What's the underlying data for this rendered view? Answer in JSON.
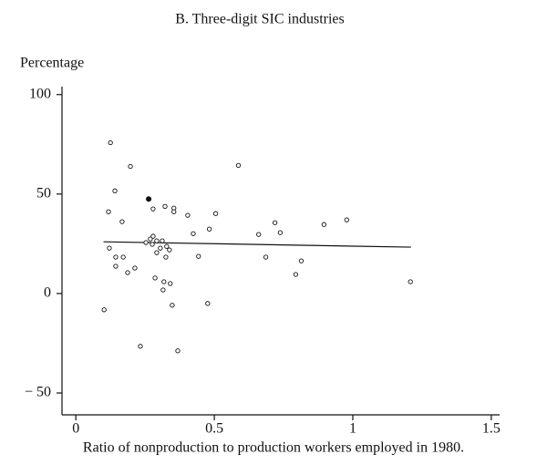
{
  "chart_data": {
    "type": "scatter",
    "title": "B. Three-digit SIC industries",
    "y_label": "Percentage",
    "x_label": "Ratio of nonproduction to production workers employed in 1980.",
    "x": [
      0.125,
      0.197,
      0.141,
      0.263,
      0.118,
      0.167,
      0.322,
      0.354,
      0.354,
      0.279,
      0.404,
      0.505,
      0.587,
      0.482,
      0.424,
      0.719,
      0.66,
      0.738,
      0.896,
      0.978,
      0.443,
      0.686,
      0.814,
      0.794,
      1.208,
      0.121,
      0.144,
      0.171,
      0.144,
      0.213,
      0.187,
      0.253,
      0.269,
      0.279,
      0.292,
      0.312,
      0.305,
      0.328,
      0.292,
      0.325,
      0.338,
      0.276,
      0.286,
      0.318,
      0.315,
      0.341,
      0.348,
      0.476,
      0.102,
      0.233,
      0.368
    ],
    "y": [
      75.8,
      63.9,
      51.6,
      47.5,
      41.1,
      36.1,
      43.8,
      42.9,
      41.1,
      42.5,
      39.3,
      40.2,
      64.4,
      32.4,
      30.1,
      35.6,
      29.7,
      30.6,
      34.7,
      37.0,
      18.7,
      18.3,
      16.4,
      9.6,
      5.9,
      22.8,
      18.3,
      18.3,
      13.7,
      12.8,
      10.5,
      25.6,
      27.4,
      28.8,
      26.5,
      26.5,
      22.8,
      23.7,
      20.5,
      18.3,
      21.9,
      24.7,
      7.8,
      5.9,
      1.8,
      5.0,
      -5.9,
      -5.0,
      -8.2,
      -26.5,
      -28.8
    ],
    "filled_points": [
      3
    ],
    "trend": {
      "x": [
        0.1,
        1.21
      ],
      "y": [
        26,
        23.3
      ]
    },
    "xlim": [
      -0.05,
      1.53
    ],
    "ylim": [
      -61,
      104
    ],
    "xticks": [
      0,
      0.5,
      1,
      1.5
    ],
    "yticks": [
      100,
      50,
      0,
      {
        "value": -50,
        "label": "− 50"
      }
    ]
  }
}
